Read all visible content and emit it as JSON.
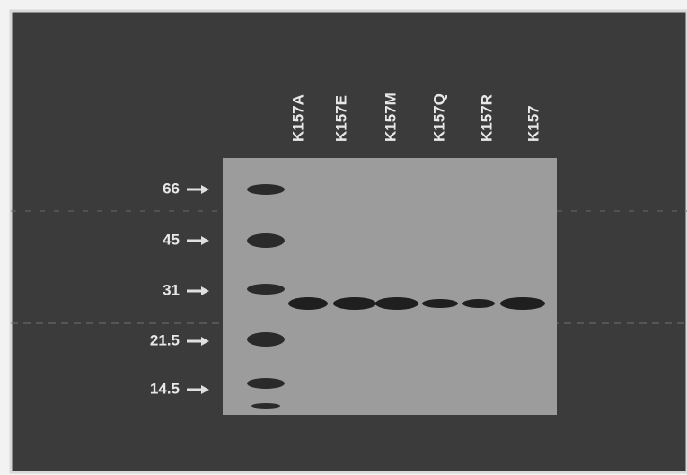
{
  "markers": [
    {
      "label": "66"
    },
    {
      "label": "45"
    },
    {
      "label": "31"
    },
    {
      "label": "21.5"
    },
    {
      "label": "14.5"
    }
  ],
  "lanes": [
    {
      "label": "K157A"
    },
    {
      "label": "K157E"
    },
    {
      "label": "K157M"
    },
    {
      "label": "K157Q"
    },
    {
      "label": "K157R"
    },
    {
      "label": "K157"
    }
  ]
}
